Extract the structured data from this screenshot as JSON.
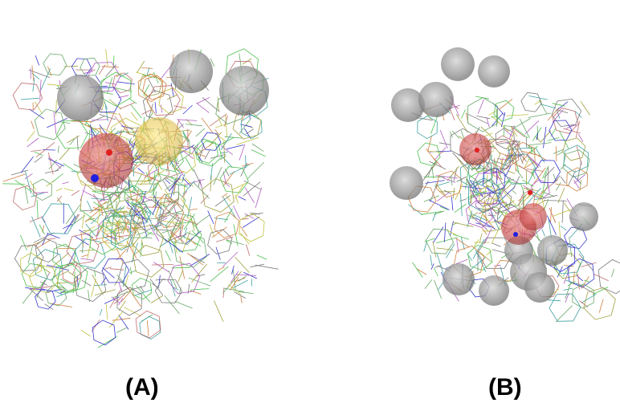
{
  "panels": {
    "a": {
      "label": "(A)",
      "spheres": [
        {
          "type": "excluded-volume",
          "color": "#8a8a8a"
        },
        {
          "type": "excluded-volume",
          "color": "#8a8a8a"
        },
        {
          "type": "excluded-volume",
          "color": "#8a8a8a"
        },
        {
          "type": "hydrogen-bond",
          "color": "#d04040"
        },
        {
          "type": "hydrophobic",
          "color": "#e0c040"
        }
      ]
    },
    "b": {
      "label": "(B)",
      "spheres": [
        {
          "type": "excluded-volume",
          "color": "#8a8a8a"
        },
        {
          "type": "hydrogen-bond",
          "color": "#d04040"
        },
        {
          "type": "hydrogen-bond",
          "color": "#d04040"
        }
      ]
    }
  },
  "palette": [
    "#3a3acc",
    "#6aa86a",
    "#c07070",
    "#b060c0",
    "#a0a040",
    "#40a0a0",
    "#7a7a7a",
    "#d08040",
    "#50c050",
    "#c0c040"
  ]
}
